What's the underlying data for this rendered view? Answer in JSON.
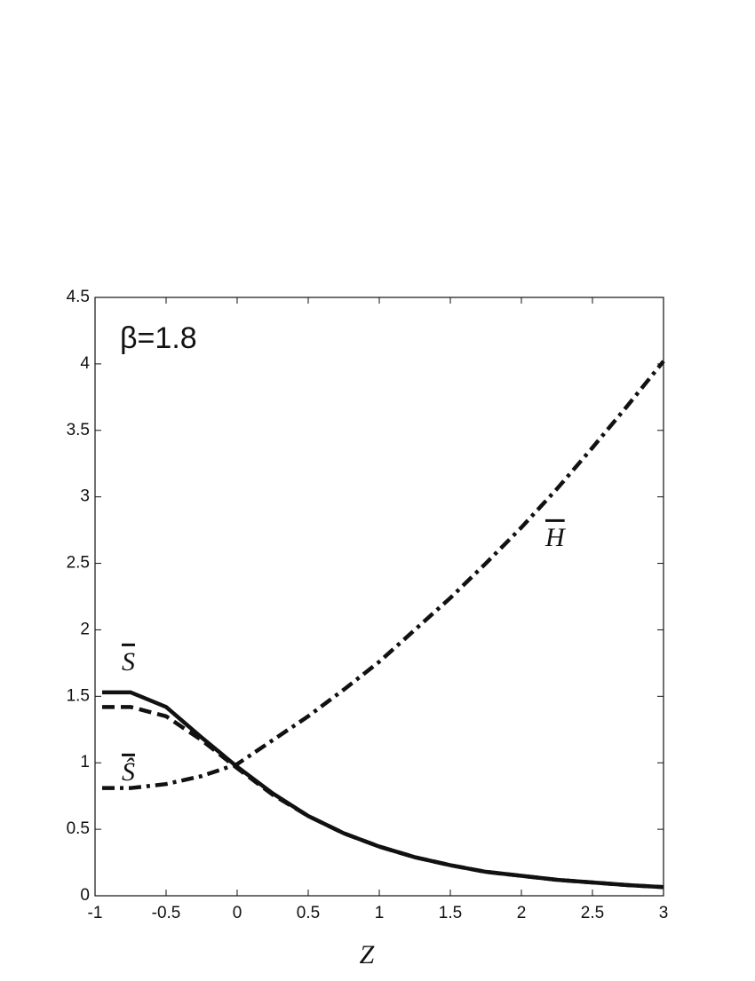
{
  "chart_data": {
    "type": "line",
    "x_label": "Z",
    "annotations": [
      "β=1.8",
      "S",
      "Ŝ",
      "H"
    ],
    "x": [
      -0.95,
      -0.75,
      -0.5,
      -0.25,
      0,
      0.25,
      0.5,
      0.75,
      1,
      1.25,
      1.5,
      1.75,
      2,
      2.25,
      2.5,
      2.75,
      3
    ],
    "series": [
      {
        "name": "S",
        "color": "#111111",
        "style": "solid",
        "values": [
          1.53,
          1.53,
          1.42,
          1.19,
          0.97,
          0.77,
          0.6,
          0.47,
          0.37,
          0.29,
          0.23,
          0.18,
          0.15,
          0.12,
          0.1,
          0.08,
          0.065
        ]
      },
      {
        "name": "Ŝ",
        "color": "#111111",
        "style": "dashed",
        "values": [
          1.42,
          1.42,
          1.35,
          1.17,
          0.96,
          0.76,
          0.6,
          0.47,
          0.37,
          0.29,
          0.23,
          0.18,
          0.15,
          0.12,
          0.1,
          0.08,
          0.065
        ]
      },
      {
        "name": "H",
        "color": "#111111",
        "style": "dashdot",
        "values": [
          0.81,
          0.81,
          0.84,
          0.9,
          0.99,
          1.17,
          1.35,
          1.55,
          1.76,
          2.0,
          2.24,
          2.5,
          2.77,
          3.06,
          3.37,
          3.69,
          4.02
        ]
      }
    ],
    "xlim": [
      -1,
      3
    ],
    "xticks": [
      -1,
      -0.5,
      0,
      0.5,
      1,
      1.5,
      2,
      2.5,
      3
    ],
    "ylim": [
      0,
      4.5
    ],
    "yticks": [
      0,
      0.5,
      1,
      1.5,
      2,
      2.5,
      3,
      3.5,
      4,
      4.5
    ],
    "grid": false
  }
}
